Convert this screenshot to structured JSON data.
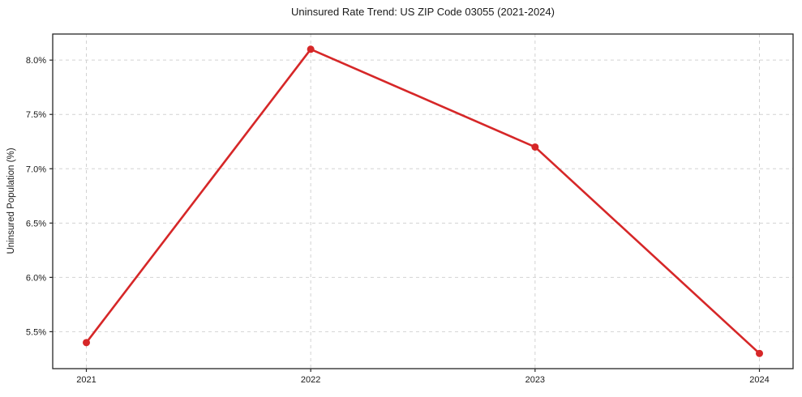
{
  "chart": {
    "title": "Uninsured Rate Trend: US ZIP Code 03055 (2021-2024)",
    "ylabel": "Uninsured Population (%)"
  },
  "chart_data": {
    "type": "line",
    "title": "Uninsured Rate Trend: US ZIP Code 03055 (2021-2024)",
    "xlabel": "",
    "ylabel": "Uninsured Population (%)",
    "x": [
      2021,
      2022,
      2023,
      2024
    ],
    "values": [
      5.4,
      8.1,
      7.2,
      5.3
    ],
    "series_name": "Uninsured rate",
    "xlim": [
      2020.85,
      2024.15
    ],
    "ylim": [
      5.16,
      8.24
    ],
    "xticks": [
      2021,
      2022,
      2023,
      2024
    ],
    "xtick_labels": [
      "2021",
      "2022",
      "2023",
      "2024"
    ],
    "yticks": [
      5.5,
      6.0,
      6.5,
      7.0,
      7.5,
      8.0
    ],
    "ytick_labels": [
      "5.5%",
      "6.0%",
      "6.5%",
      "7.0%",
      "7.5%",
      "8.0%"
    ],
    "grid": true,
    "grid_style": "dashed",
    "legend": false,
    "colors": {
      "line": "#d62728",
      "marker": "#d62728",
      "grid": "#d2d2d2",
      "frame": "#262626",
      "background": "#ffffff"
    }
  }
}
